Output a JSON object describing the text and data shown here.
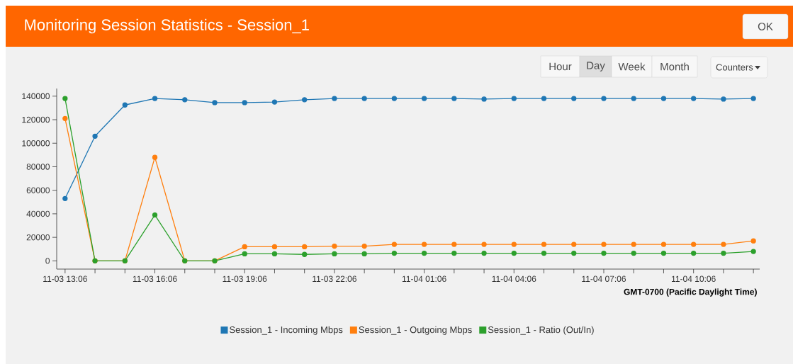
{
  "chart_data": {
    "type": "line",
    "title": "Monitoring Session Statistics - Session_1",
    "xlabel": "GMT-0700 (Pacific Daylight Time)",
    "categories": [
      "11-03 13:06",
      null,
      null,
      "11-03 16:06",
      null,
      null,
      "11-03 19:06",
      null,
      null,
      "11-03 22:06",
      null,
      null,
      "11-04 01:06",
      null,
      null,
      "11-04 04:06",
      null,
      null,
      "11-04 07:06",
      null,
      null,
      "11-04 10:06",
      null,
      null
    ],
    "series": [
      {
        "name": "Session_1 - Incoming Mbps",
        "color": "#1f77b4",
        "values": [
          53000,
          106000,
          132500,
          138000,
          137000,
          134500,
          134500,
          135000,
          137000,
          138000,
          138000,
          138000,
          138000,
          138000,
          137500,
          138000,
          138000,
          138000,
          138000,
          138000,
          138000,
          138000,
          137500,
          138000
        ]
      },
      {
        "name": "Session_1 - Outgoing Mbps",
        "color": "#ff7f0e",
        "values": [
          121000,
          0,
          0,
          88000,
          0,
          0,
          12000,
          12000,
          12000,
          12500,
          12500,
          14000,
          14000,
          14000,
          14000,
          14000,
          14000,
          14000,
          14000,
          14000,
          14000,
          14000,
          14000,
          17000
        ]
      },
      {
        "name": "Session_1 - Ratio (Out/In)",
        "color": "#2ca02c",
        "values": [
          138000,
          0,
          0,
          39000,
          0,
          0,
          6000,
          6000,
          5500,
          6000,
          6000,
          6500,
          6500,
          6500,
          6500,
          6500,
          6500,
          6500,
          6500,
          6500,
          6500,
          6500,
          6500,
          8000
        ]
      }
    ],
    "ylim": [
      -7000,
      146500
    ],
    "yticks": [
      0,
      20000,
      40000,
      60000,
      80000,
      100000,
      120000,
      140000
    ],
    "grid": false,
    "legend": "bottom",
    "marker": "circle",
    "line_style": "solid",
    "annotations": [
      "OK",
      "Hour",
      "Day",
      "Week",
      "Month",
      "Counters"
    ]
  }
}
